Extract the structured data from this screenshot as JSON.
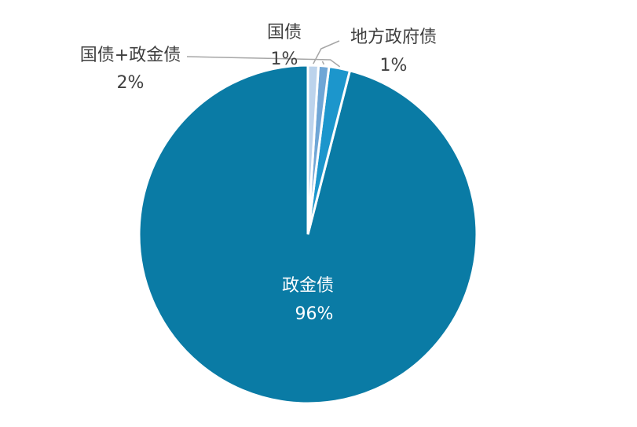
{
  "chart_data": {
    "type": "pie",
    "title": "",
    "start_angle_deg": 0,
    "direction": "counterclockwise",
    "slices": [
      {
        "label": "政金债",
        "value": 96,
        "display": "96%",
        "color": "#0a7ba5",
        "label_position": "inside"
      },
      {
        "label": "国债+政金债",
        "value": 2,
        "display": "2%",
        "color": "#1c96cc",
        "label_position": "outside-left"
      },
      {
        "label": "国债",
        "value": 1,
        "display": "1%",
        "color": "#6fa6d6",
        "label_position": "outside-top"
      },
      {
        "label": "地方政府债",
        "value": 1,
        "display": "1%",
        "color": "#bcd3ec",
        "label_position": "outside-right"
      }
    ]
  }
}
